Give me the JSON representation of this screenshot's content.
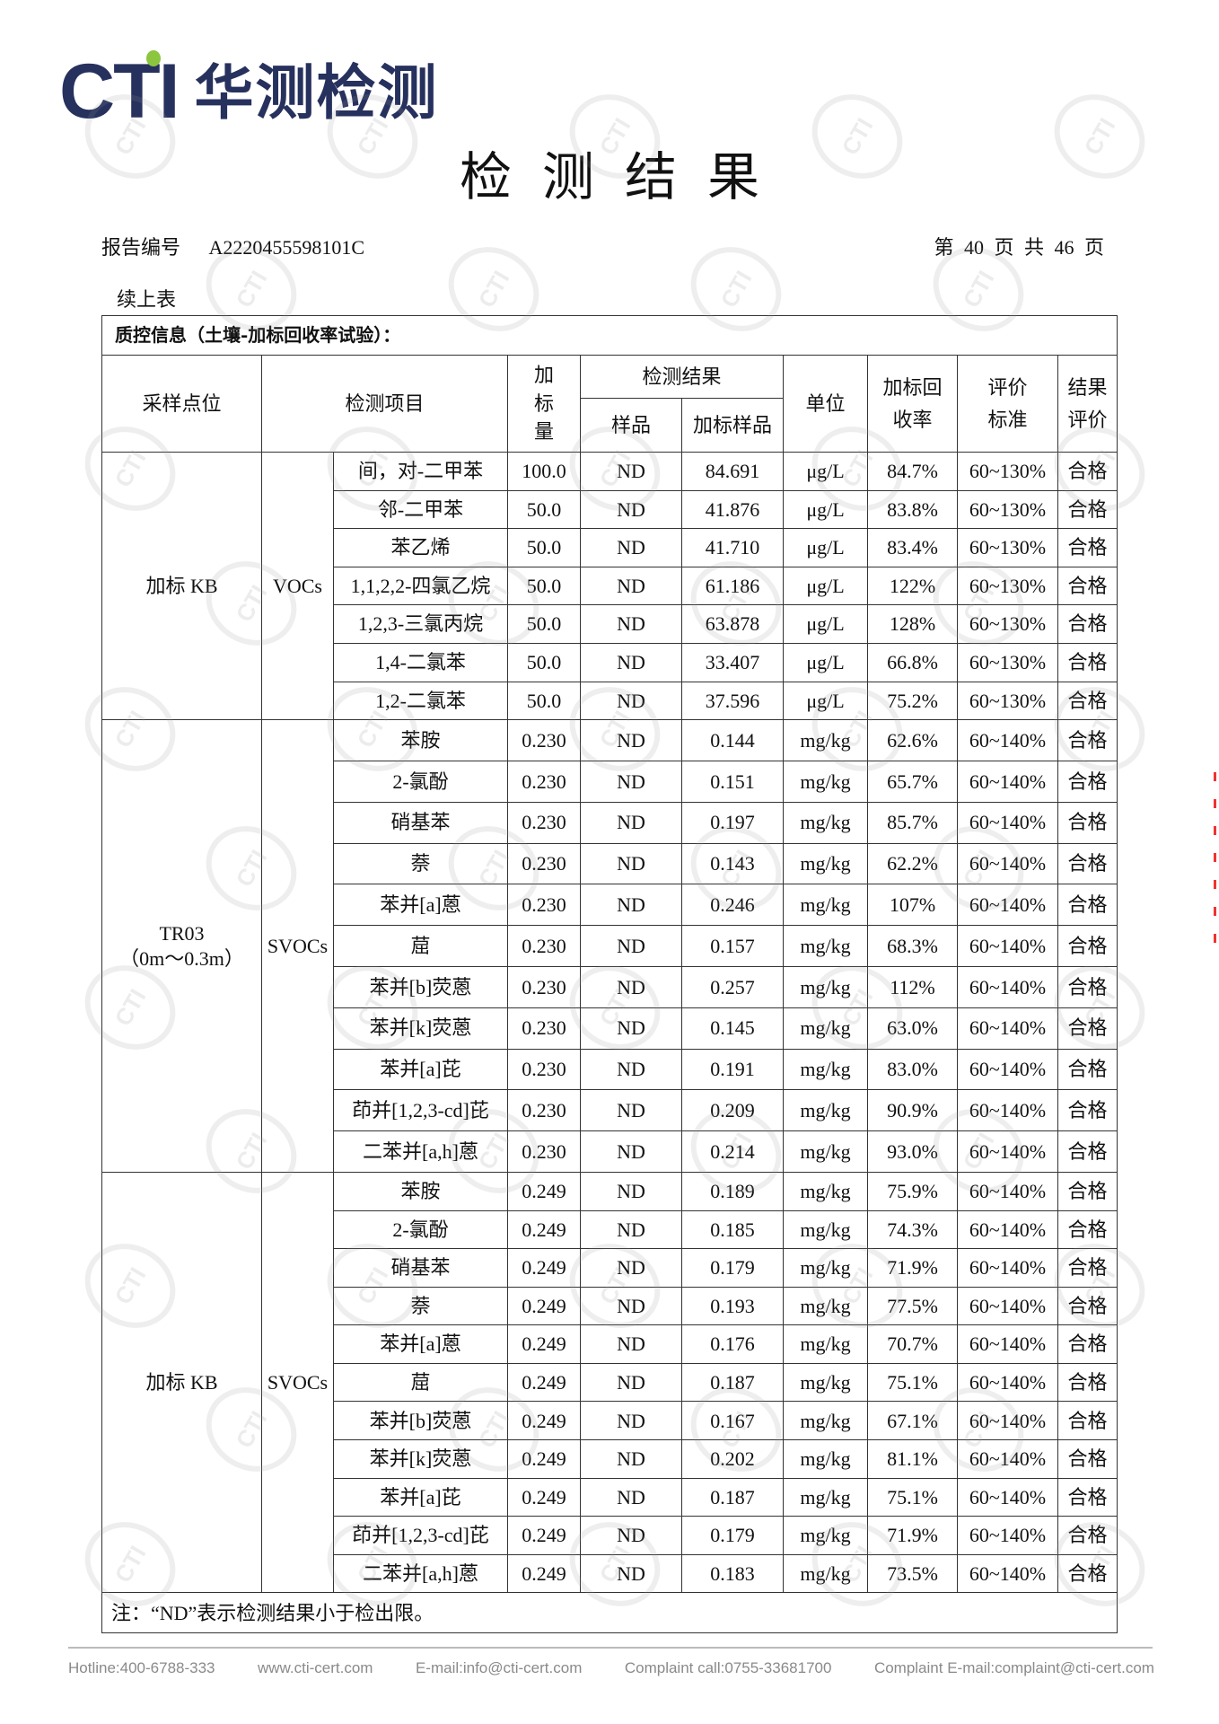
{
  "logo": {
    "latin": "CTI",
    "chinese": "华测检测",
    "accent_color": "#8cc63f",
    "brand_color": "#27315e"
  },
  "title": "检测结果",
  "report": {
    "label": "报告编号",
    "number": "A2220455598101C"
  },
  "pagination": "第 40 页 共 46 页",
  "continued": "续上表",
  "table": {
    "section_title": "质控信息（土壤-加标回收率试验）：",
    "headers": {
      "location": "采样点位",
      "item": "检测项目",
      "spike": "加\n标\n量",
      "result": "检测结果",
      "sample": "样品",
      "spiked_sample": "加标样品",
      "unit": "单位",
      "recovery": "加标回\n收率",
      "standard": "评价\n标准",
      "evaluation": "结果\n评价"
    },
    "groups": [
      {
        "location": "加标 KB",
        "category": "VOCs",
        "rows": [
          [
            "间，对-二甲苯",
            "100.0",
            "ND",
            "84.691",
            "μg/L",
            "84.7%",
            "60~130%",
            "合格"
          ],
          [
            "邻-二甲苯",
            "50.0",
            "ND",
            "41.876",
            "μg/L",
            "83.8%",
            "60~130%",
            "合格"
          ],
          [
            "苯乙烯",
            "50.0",
            "ND",
            "41.710",
            "μg/L",
            "83.4%",
            "60~130%",
            "合格"
          ],
          [
            "1,1,2,2-四氯乙烷",
            "50.0",
            "ND",
            "61.186",
            "μg/L",
            "122%",
            "60~130%",
            "合格"
          ],
          [
            "1,2,3-三氯丙烷",
            "50.0",
            "ND",
            "63.878",
            "μg/L",
            "128%",
            "60~130%",
            "合格"
          ],
          [
            "1,4-二氯苯",
            "50.0",
            "ND",
            "33.407",
            "μg/L",
            "66.8%",
            "60~130%",
            "合格"
          ],
          [
            "1,2-二氯苯",
            "50.0",
            "ND",
            "37.596",
            "μg/L",
            "75.2%",
            "60~130%",
            "合格"
          ]
        ]
      },
      {
        "location": "TR03\n（0m～0.3m）",
        "category": "SVOCs",
        "rows": [
          [
            "苯胺",
            "0.230",
            "ND",
            "0.144",
            "mg/kg",
            "62.6%",
            "60~140%",
            "合格"
          ],
          [
            "2-氯酚",
            "0.230",
            "ND",
            "0.151",
            "mg/kg",
            "65.7%",
            "60~140%",
            "合格"
          ],
          [
            "硝基苯",
            "0.230",
            "ND",
            "0.197",
            "mg/kg",
            "85.7%",
            "60~140%",
            "合格"
          ],
          [
            "萘",
            "0.230",
            "ND",
            "0.143",
            "mg/kg",
            "62.2%",
            "60~140%",
            "合格"
          ],
          [
            "苯并[a]蒽",
            "0.230",
            "ND",
            "0.246",
            "mg/kg",
            "107%",
            "60~140%",
            "合格"
          ],
          [
            "䓛",
            "0.230",
            "ND",
            "0.157",
            "mg/kg",
            "68.3%",
            "60~140%",
            "合格"
          ],
          [
            "苯并[b]荧蒽",
            "0.230",
            "ND",
            "0.257",
            "mg/kg",
            "112%",
            "60~140%",
            "合格"
          ],
          [
            "苯并[k]荧蒽",
            "0.230",
            "ND",
            "0.145",
            "mg/kg",
            "63.0%",
            "60~140%",
            "合格"
          ],
          [
            "苯并[a]芘",
            "0.230",
            "ND",
            "0.191",
            "mg/kg",
            "83.0%",
            "60~140%",
            "合格"
          ],
          [
            "茚并[1,2,3-cd]芘",
            "0.230",
            "ND",
            "0.209",
            "mg/kg",
            "90.9%",
            "60~140%",
            "合格"
          ],
          [
            "二苯并[a,h]蒽",
            "0.230",
            "ND",
            "0.214",
            "mg/kg",
            "93.0%",
            "60~140%",
            "合格"
          ]
        ]
      },
      {
        "location": "加标 KB",
        "category": "SVOCs",
        "rows": [
          [
            "苯胺",
            "0.249",
            "ND",
            "0.189",
            "mg/kg",
            "75.9%",
            "60~140%",
            "合格"
          ],
          [
            "2-氯酚",
            "0.249",
            "ND",
            "0.185",
            "mg/kg",
            "74.3%",
            "60~140%",
            "合格"
          ],
          [
            "硝基苯",
            "0.249",
            "ND",
            "0.179",
            "mg/kg",
            "71.9%",
            "60~140%",
            "合格"
          ],
          [
            "萘",
            "0.249",
            "ND",
            "0.193",
            "mg/kg",
            "77.5%",
            "60~140%",
            "合格"
          ],
          [
            "苯并[a]蒽",
            "0.249",
            "ND",
            "0.176",
            "mg/kg",
            "70.7%",
            "60~140%",
            "合格"
          ],
          [
            "䓛",
            "0.249",
            "ND",
            "0.187",
            "mg/kg",
            "75.1%",
            "60~140%",
            "合格"
          ],
          [
            "苯并[b]荧蒽",
            "0.249",
            "ND",
            "0.167",
            "mg/kg",
            "67.1%",
            "60~140%",
            "合格"
          ],
          [
            "苯并[k]荧蒽",
            "0.249",
            "ND",
            "0.202",
            "mg/kg",
            "81.1%",
            "60~140%",
            "合格"
          ],
          [
            "苯并[a]芘",
            "0.249",
            "ND",
            "0.187",
            "mg/kg",
            "75.1%",
            "60~140%",
            "合格"
          ],
          [
            "茚并[1,2,3-cd]芘",
            "0.249",
            "ND",
            "0.179",
            "mg/kg",
            "71.9%",
            "60~140%",
            "合格"
          ],
          [
            "二苯并[a,h]蒽",
            "0.249",
            "ND",
            "0.183",
            "mg/kg",
            "73.5%",
            "60~140%",
            "合格"
          ]
        ]
      }
    ],
    "note": "注：“ND”表示检测结果小于检出限。"
  },
  "watermark": "CTI",
  "footer": {
    "hotline": "Hotline:400-6788-333",
    "website": "www.cti-cert.com",
    "email": "E-mail:info@cti-cert.com",
    "complaint_call": "Complaint call:0755-33681700",
    "complaint_email": "Complaint E-mail:complaint@cti-cert.com"
  }
}
